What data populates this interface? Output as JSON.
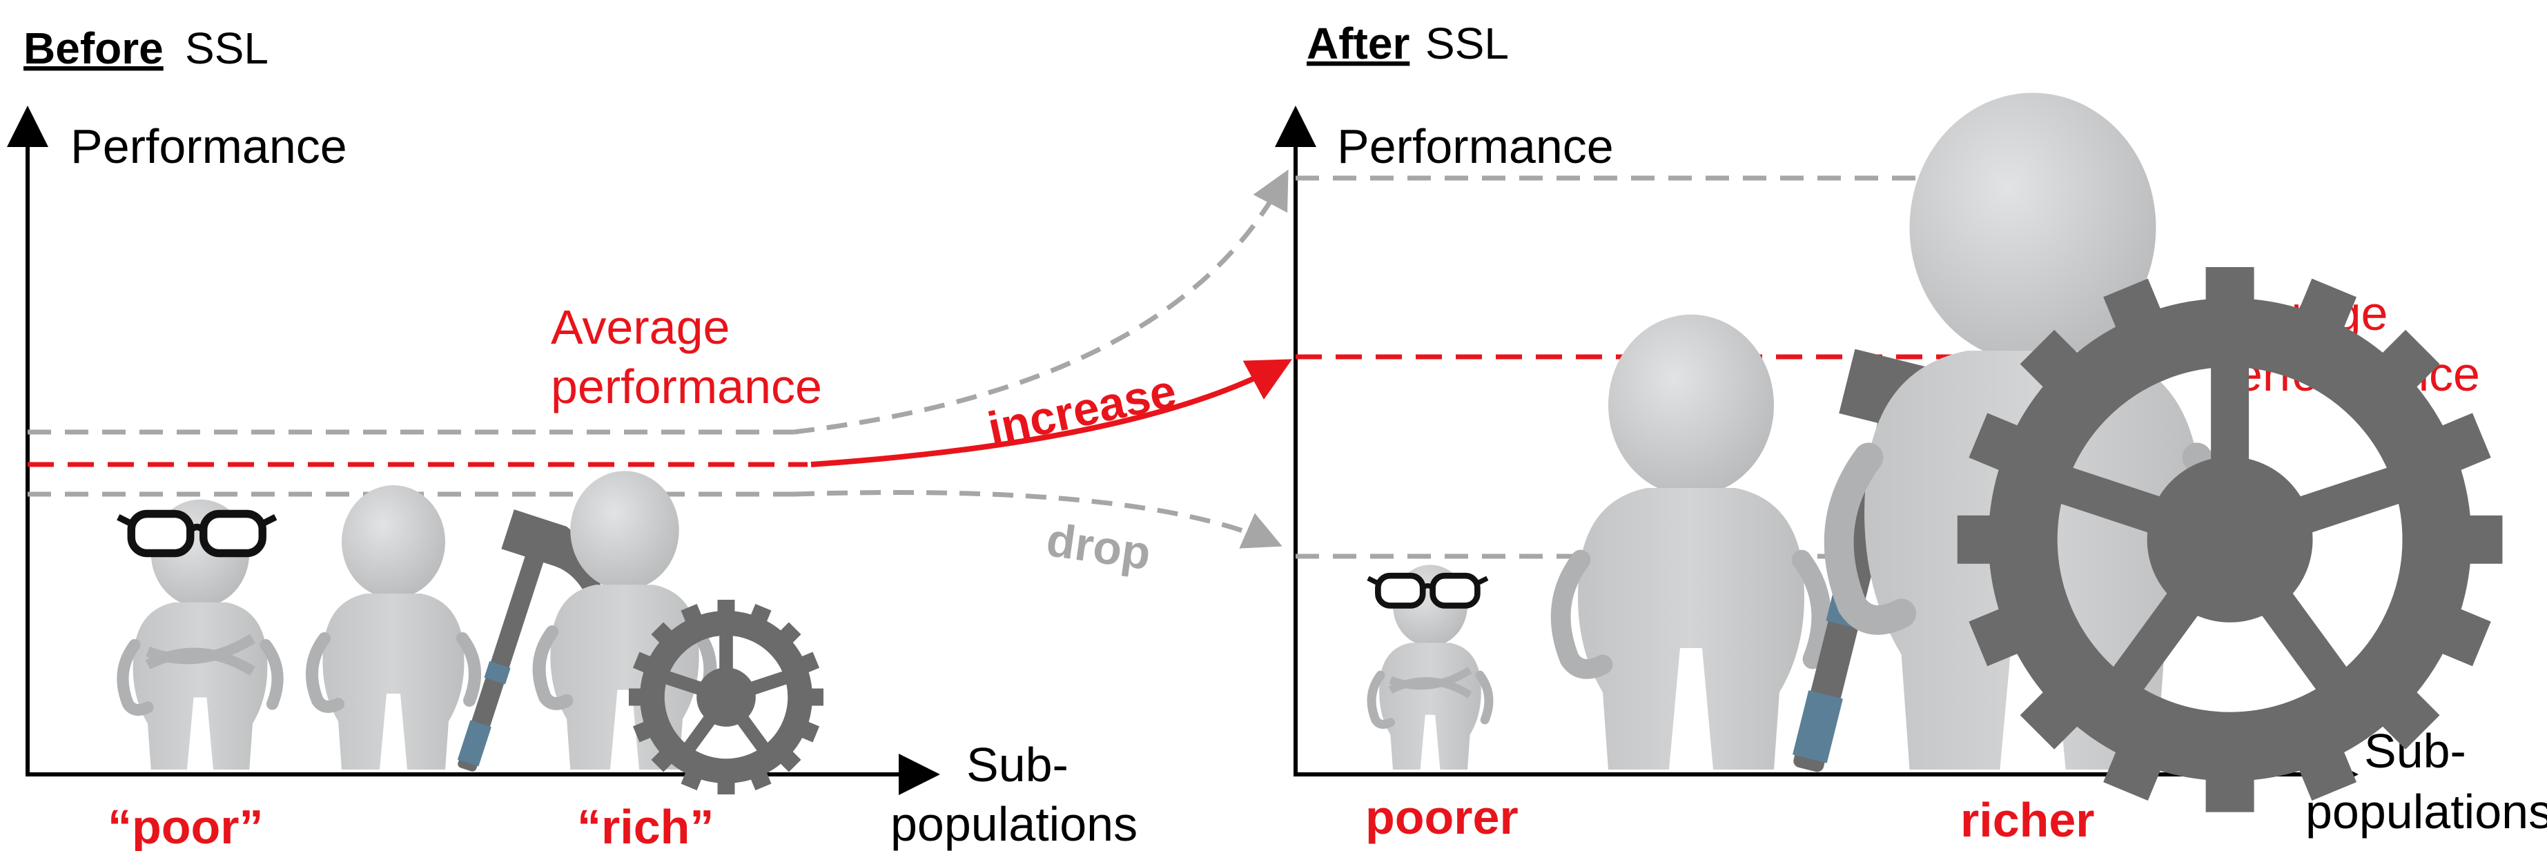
{
  "before_panel": {
    "title_bold": "Before",
    "title_rest": " SSL",
    "y_axis_label": "Performance",
    "x_axis_label_line1": "Sub-",
    "x_axis_label_line2": "populations",
    "average_label_line1": "Average",
    "average_label_line2": "performance",
    "poor_label": "“poor”",
    "rich_label": "“rich”"
  },
  "after_panel": {
    "title_bold": "After",
    "title_rest": " SSL",
    "y_axis_label": "Performance",
    "x_axis_label_line1": "Sub-",
    "x_axis_label_line2": "populations",
    "average_label_line1": "Average",
    "average_label_line2": "performance",
    "poorer_label": "poorer",
    "richer_label": "richer"
  },
  "transition": {
    "increase_label": "increase",
    "drop_label": "drop"
  },
  "colors": {
    "accent_red": "#e8141b",
    "dash_gray": "#a6a6a6",
    "figure_gray": "#c8c9ca",
    "tool_gray": "#6b6b6b",
    "axis_black": "#000000"
  },
  "icons": [
    "glasses-icon",
    "hammer-icon",
    "gear-icon",
    "figure-icon"
  ]
}
